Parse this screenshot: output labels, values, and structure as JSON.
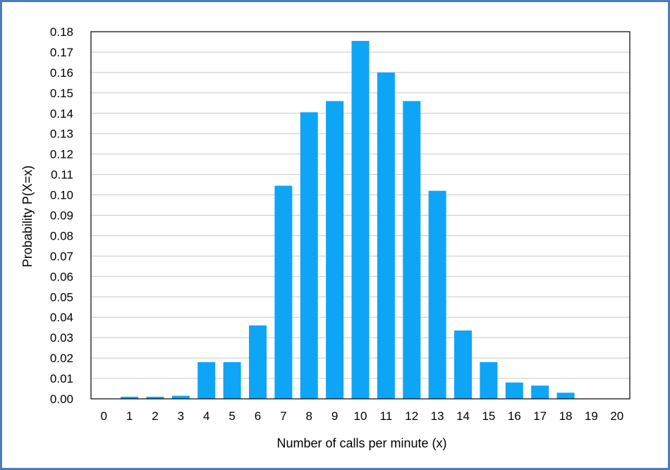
{
  "colors": {
    "frame_border": "#4a7ebb",
    "bar": "#0ea5f6",
    "gridline": "#c8c8c8",
    "axis": "#000000"
  },
  "chart_data": {
    "type": "bar",
    "xlabel": "Number of calls per minute (x)",
    "ylabel": "Probability P(X=x)",
    "categories": [
      "0",
      "1",
      "2",
      "3",
      "4",
      "5",
      "6",
      "7",
      "8",
      "9",
      "10",
      "11",
      "12",
      "13",
      "14",
      "15",
      "16",
      "17",
      "18",
      "19",
      "20"
    ],
    "values": [
      0.0,
      0.001,
      0.001,
      0.0015,
      0.018,
      0.018,
      0.036,
      0.1045,
      0.1405,
      0.146,
      0.1755,
      0.16,
      0.146,
      0.102,
      0.0335,
      0.018,
      0.008,
      0.0065,
      0.003,
      0.0,
      0.0
    ],
    "ylim": [
      0,
      0.18
    ],
    "yticks": [
      "0.00",
      "0.01",
      "0.02",
      "0.03",
      "0.04",
      "0.05",
      "0.06",
      "0.07",
      "0.08",
      "0.09",
      "0.10",
      "0.11",
      "0.12",
      "0.13",
      "0.14",
      "0.15",
      "0.16",
      "0.17",
      "0.18"
    ],
    "grid": true,
    "legend": "none"
  }
}
